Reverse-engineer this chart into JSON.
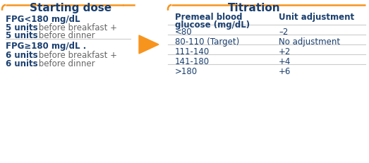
{
  "bg_color": "#ffffff",
  "dark_blue": "#1a3f6f",
  "orange": "#f7941d",
  "light_gray": "#cccccc",
  "gray_text": "#666666",
  "title_left": "Starting dose",
  "title_right": "Titration",
  "fpg_low_label": "FPG<180 mg/dL",
  "fpg_low_line1_bold": "5 units",
  "fpg_low_line1_rest": " before breakfast +",
  "fpg_low_line2_bold": "5 units",
  "fpg_low_line2_rest": " before dinner",
  "fpg_high_label": "FPG≥180 mg/dL .",
  "fpg_high_line1_bold": "6 units",
  "fpg_high_line1_rest": " before breakfast +",
  "fpg_high_line2_bold": "6 units",
  "fpg_high_line2_rest": " before dinner",
  "col_header1_line1": "Premeal blood",
  "col_header1_line2": "glucose (mg/dL)",
  "col_header2": "Unit adjustment",
  "table_glucose": [
    "<80",
    "80-110 (Target)",
    "111-140",
    "141-180",
    ">180"
  ],
  "table_adjustment": [
    "–2",
    "No adjustment",
    "+2",
    "+4",
    "+6"
  ],
  "figsize": [
    5.23,
    2.31
  ],
  "dpi": 100
}
